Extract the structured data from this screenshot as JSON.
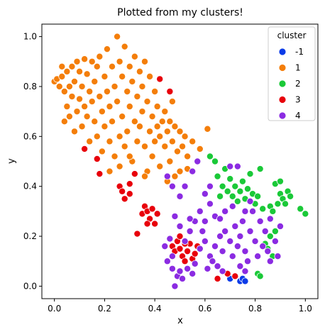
{
  "chart_data": {
    "type": "scatter",
    "title": "Plotted from my clusters!",
    "xlabel": "x",
    "ylabel": "y",
    "xlim": [
      -0.05,
      1.05
    ],
    "ylim": [
      -0.05,
      1.05
    ],
    "xticks": [
      "0.0",
      "0.2",
      "0.4",
      "0.6",
      "0.8",
      "1.0"
    ],
    "yticks": [
      "0.0",
      "0.2",
      "0.4",
      "0.6",
      "0.8",
      "1.0"
    ],
    "grid": false,
    "legend": {
      "title": "cluster",
      "placement": "top-right",
      "entries": [
        "-1",
        "1",
        "2",
        "3",
        "4"
      ]
    },
    "series": [
      {
        "name": "-1",
        "color": "#0b3be8",
        "points": [
          [
            0.7,
            0.03
          ],
          [
            0.72,
            0.04
          ],
          [
            0.74,
            0.02
          ],
          [
            0.75,
            0.03
          ],
          [
            0.76,
            0.02
          ]
        ]
      },
      {
        "name": "1",
        "color": "#f47e0a",
        "points": [
          [
            0.0,
            0.82
          ],
          [
            0.01,
            0.83
          ],
          [
            0.02,
            0.8
          ],
          [
            0.03,
            0.88
          ],
          [
            0.03,
            0.84
          ],
          [
            0.04,
            0.78
          ],
          [
            0.04,
            0.66
          ],
          [
            0.05,
            0.72
          ],
          [
            0.05,
            0.86
          ],
          [
            0.06,
            0.8
          ],
          [
            0.06,
            0.68
          ],
          [
            0.07,
            0.76
          ],
          [
            0.07,
            0.88
          ],
          [
            0.08,
            0.82
          ],
          [
            0.08,
            0.62
          ],
          [
            0.09,
            0.7
          ],
          [
            0.09,
            0.9
          ],
          [
            0.1,
            0.86
          ],
          [
            0.1,
            0.75
          ],
          [
            0.11,
            0.64
          ],
          [
            0.11,
            0.8
          ],
          [
            0.12,
            0.91
          ],
          [
            0.12,
            0.72
          ],
          [
            0.13,
            0.85
          ],
          [
            0.13,
            0.68
          ],
          [
            0.14,
            0.78
          ],
          [
            0.14,
            0.58
          ],
          [
            0.15,
            0.9
          ],
          [
            0.15,
            0.74
          ],
          [
            0.16,
            0.66
          ],
          [
            0.16,
            0.82
          ],
          [
            0.17,
            0.88
          ],
          [
            0.17,
            0.6
          ],
          [
            0.18,
            0.76
          ],
          [
            0.18,
            0.92
          ],
          [
            0.19,
            0.7
          ],
          [
            0.19,
            0.54
          ],
          [
            0.2,
            0.84
          ],
          [
            0.2,
            0.64
          ],
          [
            0.21,
            0.78
          ],
          [
            0.21,
            0.95
          ],
          [
            0.22,
            0.58
          ],
          [
            0.22,
            0.72
          ],
          [
            0.22,
            0.46
          ],
          [
            0.23,
            0.88
          ],
          [
            0.23,
            0.66
          ],
          [
            0.24,
            0.8
          ],
          [
            0.24,
            0.52
          ],
          [
            0.25,
            1.0
          ],
          [
            0.25,
            0.74
          ],
          [
            0.26,
            0.6
          ],
          [
            0.26,
            0.9
          ],
          [
            0.27,
            0.84
          ],
          [
            0.27,
            0.68
          ],
          [
            0.28,
            0.56
          ],
          [
            0.28,
            0.96
          ],
          [
            0.29,
            0.78
          ],
          [
            0.29,
            0.62
          ],
          [
            0.3,
            0.88
          ],
          [
            0.3,
            0.72
          ],
          [
            0.31,
            0.5
          ],
          [
            0.31,
            0.82
          ],
          [
            0.32,
            0.66
          ],
          [
            0.32,
            0.92
          ],
          [
            0.33,
            0.76
          ],
          [
            0.33,
            0.58
          ],
          [
            0.34,
            0.86
          ],
          [
            0.34,
            0.64
          ],
          [
            0.35,
            0.7
          ],
          [
            0.35,
            0.8
          ],
          [
            0.36,
            0.56
          ],
          [
            0.36,
            0.9
          ],
          [
            0.37,
            0.74
          ],
          [
            0.37,
            0.46
          ],
          [
            0.38,
            0.62
          ],
          [
            0.38,
            0.84
          ],
          [
            0.39,
            0.68
          ],
          [
            0.39,
            0.52
          ],
          [
            0.4,
            0.78
          ],
          [
            0.4,
            0.58
          ],
          [
            0.41,
            0.64
          ],
          [
            0.41,
            0.72
          ],
          [
            0.42,
            0.48
          ],
          [
            0.42,
            0.6
          ],
          [
            0.43,
            0.66
          ],
          [
            0.44,
            0.56
          ],
          [
            0.44,
            0.7
          ],
          [
            0.45,
            0.62
          ],
          [
            0.46,
            0.5
          ],
          [
            0.46,
            0.66
          ],
          [
            0.47,
            0.58
          ],
          [
            0.47,
            0.74
          ],
          [
            0.48,
            0.64
          ],
          [
            0.49,
            0.54
          ],
          [
            0.5,
            0.62
          ],
          [
            0.5,
            0.46
          ],
          [
            0.51,
            0.56
          ],
          [
            0.52,
            0.6
          ],
          [
            0.53,
            0.52
          ],
          [
            0.55,
            0.58
          ],
          [
            0.58,
            0.55
          ],
          [
            0.61,
            0.63
          ],
          [
            0.45,
            0.42
          ],
          [
            0.48,
            0.44
          ],
          [
            0.53,
            0.47
          ],
          [
            0.36,
            0.44
          ],
          [
            0.3,
            0.52
          ],
          [
            0.26,
            0.48
          ]
        ]
      },
      {
        "name": "2",
        "color": "#1ac938",
        "points": [
          [
            0.62,
            0.52
          ],
          [
            0.64,
            0.5
          ],
          [
            0.65,
            0.44
          ],
          [
            0.66,
            0.36
          ],
          [
            0.67,
            0.4
          ],
          [
            0.68,
            0.47
          ],
          [
            0.69,
            0.38
          ],
          [
            0.7,
            0.43
          ],
          [
            0.71,
            0.36
          ],
          [
            0.72,
            0.4
          ],
          [
            0.73,
            0.34
          ],
          [
            0.74,
            0.38
          ],
          [
            0.75,
            0.42
          ],
          [
            0.76,
            0.35
          ],
          [
            0.77,
            0.39
          ],
          [
            0.78,
            0.45
          ],
          [
            0.79,
            0.37
          ],
          [
            0.8,
            0.33
          ],
          [
            0.81,
            0.36
          ],
          [
            0.82,
            0.47
          ],
          [
            0.83,
            0.31
          ],
          [
            0.84,
            0.17
          ],
          [
            0.85,
            0.15
          ],
          [
            0.86,
            0.2
          ],
          [
            0.87,
            0.12
          ],
          [
            0.88,
            0.22
          ],
          [
            0.89,
            0.33
          ],
          [
            0.9,
            0.37
          ],
          [
            0.91,
            0.35
          ],
          [
            0.92,
            0.33
          ],
          [
            0.93,
            0.38
          ],
          [
            0.94,
            0.36
          ],
          [
            0.88,
            0.41
          ],
          [
            0.9,
            0.42
          ],
          [
            0.98,
            0.31
          ],
          [
            1.0,
            0.29
          ],
          [
            0.81,
            0.05
          ],
          [
            0.82,
            0.04
          ],
          [
            0.86,
            0.32
          ],
          [
            0.87,
            0.3
          ]
        ]
      },
      {
        "name": "3",
        "color": "#e8000b",
        "points": [
          [
            0.12,
            0.55
          ],
          [
            0.17,
            0.51
          ],
          [
            0.18,
            0.45
          ],
          [
            0.26,
            0.4
          ],
          [
            0.27,
            0.38
          ],
          [
            0.3,
            0.37
          ],
          [
            0.3,
            0.41
          ],
          [
            0.28,
            0.35
          ],
          [
            0.32,
            0.45
          ],
          [
            0.35,
            0.29
          ],
          [
            0.36,
            0.32
          ],
          [
            0.37,
            0.3
          ],
          [
            0.38,
            0.27
          ],
          [
            0.39,
            0.31
          ],
          [
            0.4,
            0.25
          ],
          [
            0.41,
            0.29
          ],
          [
            0.37,
            0.25
          ],
          [
            0.33,
            0.21
          ],
          [
            0.42,
            0.83
          ],
          [
            0.46,
            0.78
          ],
          [
            0.47,
            0.16
          ],
          [
            0.49,
            0.18
          ],
          [
            0.5,
            0.2
          ],
          [
            0.51,
            0.12
          ],
          [
            0.52,
            0.1
          ],
          [
            0.53,
            0.14
          ],
          [
            0.54,
            0.17
          ],
          [
            0.55,
            0.11
          ],
          [
            0.56,
            0.13
          ],
          [
            0.57,
            0.16
          ],
          [
            0.48,
            0.14
          ],
          [
            0.5,
            0.15
          ],
          [
            0.65,
            0.03
          ],
          [
            0.69,
            0.05
          ],
          [
            0.72,
            0.04
          ],
          [
            0.52,
            0.17
          ]
        ]
      },
      {
        "name": "4",
        "color": "#8b2be2",
        "points": [
          [
            0.45,
            0.44
          ],
          [
            0.47,
            0.4
          ],
          [
            0.5,
            0.36
          ],
          [
            0.52,
            0.4
          ],
          [
            0.55,
            0.46
          ],
          [
            0.57,
            0.5
          ],
          [
            0.58,
            0.3
          ],
          [
            0.6,
            0.26
          ],
          [
            0.62,
            0.33
          ],
          [
            0.64,
            0.28
          ],
          [
            0.48,
            0.28
          ],
          [
            0.5,
            0.24
          ],
          [
            0.52,
            0.18
          ],
          [
            0.54,
            0.22
          ],
          [
            0.56,
            0.26
          ],
          [
            0.58,
            0.15
          ],
          [
            0.6,
            0.18
          ],
          [
            0.62,
            0.12
          ],
          [
            0.64,
            0.16
          ],
          [
            0.66,
            0.2
          ],
          [
            0.67,
            0.14
          ],
          [
            0.68,
            0.22
          ],
          [
            0.7,
            0.18
          ],
          [
            0.71,
            0.12
          ],
          [
            0.72,
            0.24
          ],
          [
            0.73,
            0.16
          ],
          [
            0.74,
            0.2
          ],
          [
            0.75,
            0.26
          ],
          [
            0.76,
            0.14
          ],
          [
            0.77,
            0.1
          ],
          [
            0.78,
            0.22
          ],
          [
            0.79,
            0.3
          ],
          [
            0.8,
            0.18
          ],
          [
            0.81,
            0.12
          ],
          [
            0.82,
            0.26
          ],
          [
            0.84,
            0.22
          ],
          [
            0.85,
            0.14
          ],
          [
            0.86,
            0.1
          ],
          [
            0.88,
            0.18
          ],
          [
            0.89,
            0.12
          ],
          [
            0.9,
            0.24
          ],
          [
            0.86,
            0.27
          ],
          [
            0.47,
            0.07
          ],
          [
            0.49,
            0.04
          ],
          [
            0.51,
            0.03
          ],
          [
            0.53,
            0.07
          ],
          [
            0.55,
            0.05
          ],
          [
            0.56,
            0.09
          ],
          [
            0.48,
            0.0
          ],
          [
            0.5,
            0.06
          ],
          [
            0.45,
            0.1
          ],
          [
            0.47,
            0.12
          ],
          [
            0.44,
            0.16
          ],
          [
            0.46,
            0.19
          ],
          [
            0.7,
            0.48
          ],
          [
            0.73,
            0.48
          ],
          [
            0.66,
            0.27
          ],
          [
            0.68,
            0.3
          ],
          [
            0.76,
            0.3
          ],
          [
            0.78,
            0.34
          ],
          [
            0.65,
            0.08
          ],
          [
            0.67,
            0.06
          ],
          [
            0.63,
            0.1
          ],
          [
            0.61,
            0.07
          ],
          [
            0.74,
            0.08
          ],
          [
            0.76,
            0.06
          ],
          [
            0.54,
            0.27
          ],
          [
            0.59,
            0.22
          ],
          [
            0.71,
            0.32
          ],
          [
            0.83,
            0.16
          ],
          [
            0.62,
            0.4
          ],
          [
            0.6,
            0.37
          ]
        ]
      }
    ]
  }
}
